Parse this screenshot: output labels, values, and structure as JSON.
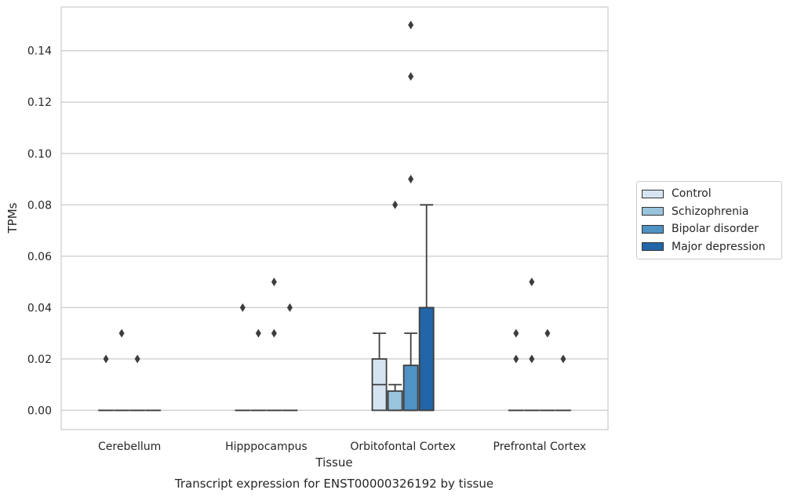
{
  "chart_data": {
    "type": "box",
    "title": "Transcript expression for ENST00000326192 by tissue",
    "xlabel": "Tissue",
    "ylabel": "TPMs",
    "ylim": [
      -0.0075,
      0.157
    ],
    "yticks": [
      0.0,
      0.02,
      0.04,
      0.06,
      0.08,
      0.1,
      0.12,
      0.14
    ],
    "ytick_labels": [
      "0.00",
      "0.02",
      "0.04",
      "0.06",
      "0.08",
      "0.10",
      "0.12",
      "0.14"
    ],
    "grid": "horizontal",
    "legend_placement": "right",
    "categories": [
      "Cerebellum",
      "Hipppocampus",
      "Orbitofontal Cortex",
      "Prefrontal Cortex"
    ],
    "series": [
      {
        "name": "Control",
        "color": "#d6e4f2",
        "boxes": [
          {
            "q1": 0,
            "median": 0,
            "q3": 0,
            "whisker_low": 0,
            "whisker_high": 0,
            "outliers": [
              0.02
            ]
          },
          {
            "q1": 0,
            "median": 0,
            "q3": 0,
            "whisker_low": 0,
            "whisker_high": 0,
            "outliers": [
              0.04
            ]
          },
          {
            "q1": 0,
            "median": 0.01,
            "q3": 0.02,
            "whisker_low": 0,
            "whisker_high": 0.03,
            "outliers": []
          },
          {
            "q1": 0,
            "median": 0,
            "q3": 0,
            "whisker_low": 0,
            "whisker_high": 0,
            "outliers": [
              0.02,
              0.03
            ]
          }
        ]
      },
      {
        "name": "Schizophrenia",
        "color": "#9ac4de",
        "boxes": [
          {
            "q1": 0,
            "median": 0,
            "q3": 0,
            "whisker_low": 0,
            "whisker_high": 0,
            "outliers": [
              0.03
            ]
          },
          {
            "q1": 0,
            "median": 0,
            "q3": 0,
            "whisker_low": 0,
            "whisker_high": 0,
            "outliers": [
              0.03
            ]
          },
          {
            "q1": 0,
            "median": 0,
            "q3": 0.0075,
            "whisker_low": 0,
            "whisker_high": 0.01,
            "outliers": [
              0.08
            ]
          },
          {
            "q1": 0,
            "median": 0,
            "q3": 0,
            "whisker_low": 0,
            "whisker_high": 0,
            "outliers": [
              0.02,
              0.05
            ]
          }
        ]
      },
      {
        "name": "Bipolar disorder",
        "color": "#4f92c4",
        "boxes": [
          {
            "q1": 0,
            "median": 0,
            "q3": 0,
            "whisker_low": 0,
            "whisker_high": 0,
            "outliers": [
              0.02
            ]
          },
          {
            "q1": 0,
            "median": 0,
            "q3": 0,
            "whisker_low": 0,
            "whisker_high": 0,
            "outliers": [
              0.03,
              0.05
            ]
          },
          {
            "q1": 0,
            "median": 0,
            "q3": 0.0175,
            "whisker_low": 0,
            "whisker_high": 0.03,
            "outliers": [
              0.09,
              0.13,
              0.15
            ]
          },
          {
            "q1": 0,
            "median": 0,
            "q3": 0,
            "whisker_low": 0,
            "whisker_high": 0,
            "outliers": [
              0.03
            ]
          }
        ]
      },
      {
        "name": "Major depression",
        "color": "#2265a8",
        "boxes": [
          {
            "q1": 0,
            "median": 0,
            "q3": 0,
            "whisker_low": 0,
            "whisker_high": 0,
            "outliers": []
          },
          {
            "q1": 0,
            "median": 0,
            "q3": 0,
            "whisker_low": 0,
            "whisker_high": 0,
            "outliers": [
              0.04
            ]
          },
          {
            "q1": 0,
            "median": 0,
            "q3": 0.04,
            "whisker_low": 0,
            "whisker_high": 0.08,
            "outliers": []
          },
          {
            "q1": 0,
            "median": 0,
            "q3": 0,
            "whisker_low": 0,
            "whisker_high": 0,
            "outliers": [
              0.02
            ]
          }
        ]
      }
    ]
  }
}
